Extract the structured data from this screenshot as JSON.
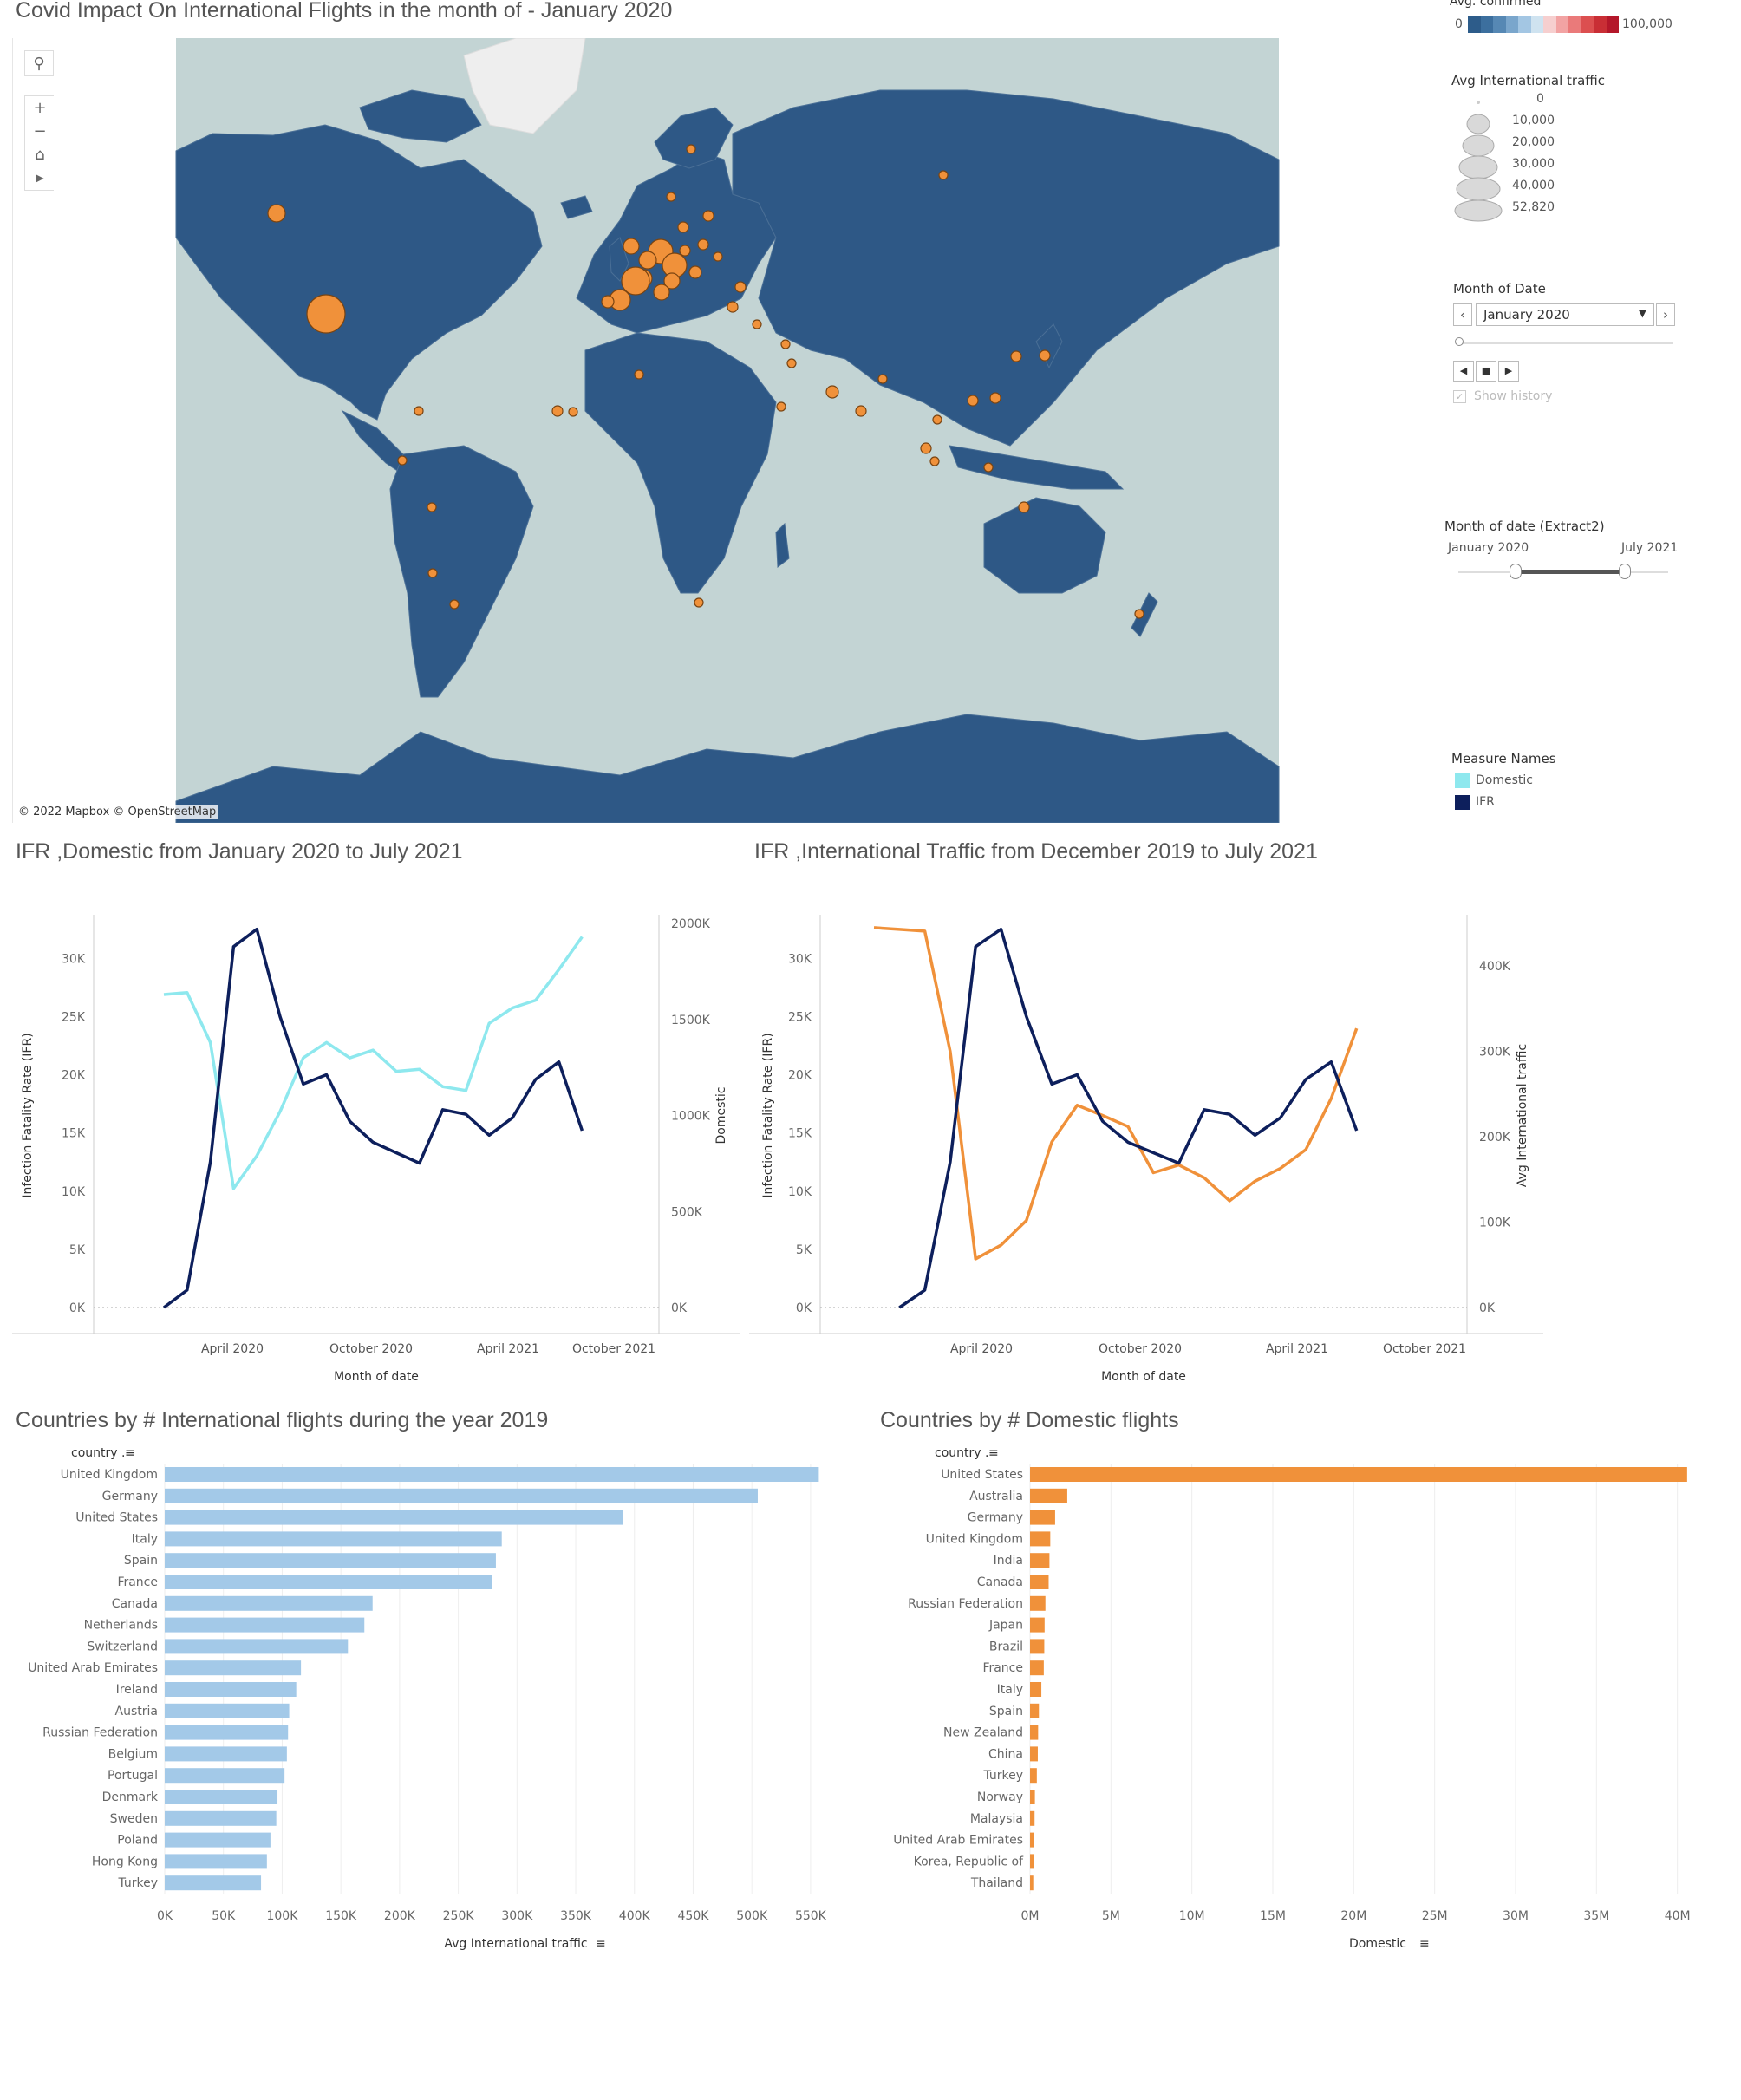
{
  "map": {
    "title": "Covid Impact On International Flights in the month of - January 2020",
    "attribution": "© 2022 Mapbox  © OpenStreetMap",
    "tools": [
      "search-icon",
      "zoom-in-icon",
      "zoom-out-icon",
      "home-icon",
      "play-icon"
    ],
    "colors": {
      "ocean": "#c3d4d4",
      "land": "#2e5886",
      "greenland": "#eeeeee",
      "bubble": "#f0913a"
    }
  },
  "legends": {
    "confirmed": {
      "title": "Avg. confirmed",
      "min": "0",
      "max": "100,000",
      "colors": [
        "#2d5c8a",
        "#3c6f9e",
        "#5688b4",
        "#7aa6cc",
        "#a3c6e3",
        "#cfe3f0",
        "#f6cfcf",
        "#f2a3a3",
        "#ea7a7a",
        "#dc4f50",
        "#c92e35",
        "#b4172a"
      ]
    },
    "traffic": {
      "title": "Avg International traffic",
      "labels": [
        "0",
        "10,000",
        "20,000",
        "30,000",
        "40,000",
        "52,820"
      ]
    },
    "month_filter": {
      "title": "Month of Date",
      "value": "January 2020",
      "show_history": "Show history"
    },
    "range_filter": {
      "title": "Month of date (Extract2)",
      "start": "January 2020",
      "end": "July 2021"
    },
    "measure_names": {
      "title": "Measure Names",
      "items": [
        {
          "label": "Domestic",
          "color": "#8ee8ee"
        },
        {
          "label": "IFR",
          "color": "#0d1f5c"
        }
      ]
    }
  },
  "chart_data": [
    {
      "type": "line",
      "title": "IFR ,Domestic from  January 2020 to July 2021",
      "xlabel": "Month of date",
      "ylabel": "Infection Fatality Rate (IFR)",
      "y2label": "Domestic",
      "x_ticks": [
        "April 2020",
        "October 2020",
        "April 2021",
        "October 2021"
      ],
      "y_ticks": [
        "0K",
        "5K",
        "10K",
        "15K",
        "20K",
        "25K",
        "30K"
      ],
      "y2_ticks": [
        "0K",
        "500K",
        "1000K",
        "1500K",
        "2000K"
      ],
      "ylim": [
        0,
        33000
      ],
      "y2lim": [
        0,
        2000000
      ],
      "series": [
        {
          "name": "Domestic",
          "axis": "right",
          "color": "#8ee8ee",
          "values": [
            1630000,
            1640000,
            1380000,
            620000,
            790000,
            1020000,
            1300000,
            1380000,
            1300000,
            1340000,
            1230000,
            1240000,
            1150000,
            1130000,
            1480000,
            1560000,
            1600000,
            1760000,
            1930000
          ]
        },
        {
          "name": "IFR",
          "axis": "left",
          "color": "#0d1f5c",
          "values": [
            0,
            1500,
            12500,
            31000,
            32500,
            25000,
            19200,
            20000,
            16000,
            14200,
            13300,
            12400,
            17000,
            16600,
            14800,
            16300,
            19600,
            21100,
            15200
          ]
        }
      ]
    },
    {
      "type": "line",
      "title": "IFR ,International Traffic from  December 2019 to July 2021",
      "xlabel": "Month of date",
      "ylabel": "Infection Fatality Rate  (IFR)",
      "y2label": "Avg International traffic",
      "x_ticks": [
        "April 2020",
        "October 2020",
        "April 2021",
        "October 2021"
      ],
      "y_ticks": [
        "0K",
        "5K",
        "10K",
        "15K",
        "20K",
        "25K",
        "30K"
      ],
      "y2_ticks": [
        "0K",
        "100K",
        "200K",
        "300K",
        "400K"
      ],
      "ylim": [
        0,
        33000
      ],
      "y2lim": [
        0,
        450000
      ],
      "series": [
        {
          "name": "Avg International traffic",
          "axis": "right",
          "color": "#f0913a",
          "values": [
            445000,
            443000,
            441000,
            300000,
            57000,
            73000,
            102000,
            194000,
            237000,
            225000,
            212000,
            158000,
            167000,
            152000,
            125000,
            148000,
            163000,
            185000,
            245000,
            327000
          ]
        },
        {
          "name": "IFR",
          "axis": "left",
          "color": "#0d1f5c",
          "values": [
            null,
            0,
            1500,
            12500,
            31000,
            32500,
            25000,
            19200,
            20000,
            16000,
            14200,
            13300,
            12400,
            17000,
            16600,
            14800,
            16300,
            19600,
            21100,
            15200
          ]
        }
      ]
    },
    {
      "type": "bar",
      "orientation": "horizontal",
      "title": "Countries by # International flights during the year 2019",
      "category_header": "country",
      "xlabel": "Avg International traffic",
      "color": "#a3c9e8",
      "categories": [
        "United Kingdom",
        "Germany",
        "United States",
        "Italy",
        "Spain",
        "France",
        "Canada",
        "Netherlands",
        "Switzerland",
        "United Arab Emirates",
        "Ireland",
        "Austria",
        "Russian Federation",
        "Belgium",
        "Portugal",
        "Denmark",
        "Sweden",
        "Poland",
        "Hong Kong",
        "Turkey"
      ],
      "values": [
        557000,
        505000,
        390000,
        287000,
        282000,
        279000,
        177000,
        170000,
        156000,
        116000,
        112000,
        106000,
        105000,
        104000,
        102000,
        96000,
        95000,
        90000,
        87000,
        82000
      ],
      "x_ticks": [
        "0K",
        "50K",
        "100K",
        "150K",
        "200K",
        "250K",
        "300K",
        "350K",
        "400K",
        "450K",
        "500K",
        "550K"
      ],
      "xlim": [
        0,
        570000
      ]
    },
    {
      "type": "bar",
      "orientation": "horizontal",
      "title": "Countries by # Domestic flights",
      "category_header": "country",
      "xlabel": "Domestic",
      "color": "#f0913a",
      "categories": [
        "United States",
        "Australia",
        "Germany",
        "United Kingdom",
        "India",
        "Canada",
        "Russian Federation",
        "Japan",
        "Brazil",
        "France",
        "Italy",
        "Spain",
        "New Zealand",
        "China",
        "Turkey",
        "Norway",
        "Malaysia",
        "United Arab Emirates",
        "Korea, Republic of",
        "Thailand"
      ],
      "values": [
        40600000,
        2300000,
        1550000,
        1250000,
        1200000,
        1150000,
        950000,
        900000,
        880000,
        850000,
        700000,
        550000,
        500000,
        480000,
        420000,
        300000,
        280000,
        250000,
        230000,
        200000
      ],
      "x_ticks": [
        "0M",
        "5M",
        "10M",
        "15M",
        "20M",
        "25M",
        "30M",
        "35M",
        "40M"
      ],
      "xlim": [
        0,
        42000000
      ]
    }
  ]
}
